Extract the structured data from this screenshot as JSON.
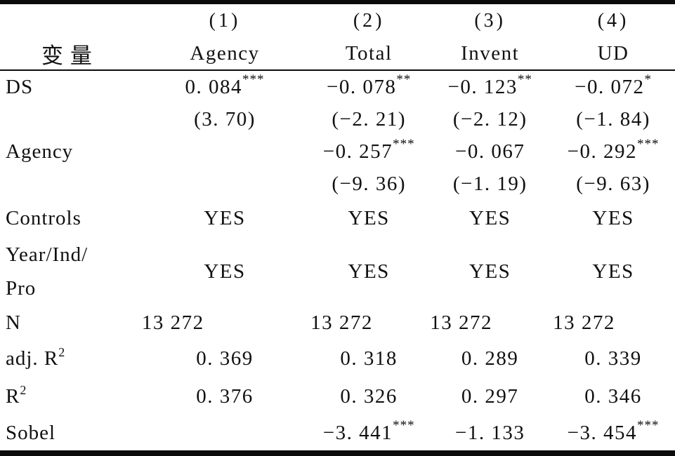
{
  "table": {
    "header": {
      "variable_label": "变量",
      "numbers": [
        "(1)",
        "(2)",
        "(3)",
        "(4)"
      ],
      "names": [
        "Agency",
        "Total",
        "Invent",
        "UD"
      ]
    },
    "rows": {
      "ds": {
        "label": "DS",
        "values": [
          {
            "v": "0. 084",
            "s": "***"
          },
          {
            "v": "−0. 078",
            "s": "**"
          },
          {
            "v": "−0. 123",
            "s": "**"
          },
          {
            "v": "−0. 072",
            "s": "*"
          }
        ],
        "tstats": [
          "(3. 70)",
          "(−2. 21)",
          "(−2. 12)",
          "(−1. 84)"
        ]
      },
      "agency": {
        "label": "Agency",
        "values": [
          {
            "v": "",
            "s": ""
          },
          {
            "v": "−0. 257",
            "s": "***"
          },
          {
            "v": "−0. 067",
            "s": ""
          },
          {
            "v": "−0. 292",
            "s": "***"
          }
        ],
        "tstats": [
          "",
          "(−9. 36)",
          "(−1. 19)",
          "(−9. 63)"
        ]
      },
      "controls": {
        "label": "Controls",
        "values": [
          "YES",
          "YES",
          "YES",
          "YES"
        ]
      },
      "year_ind_pro": {
        "label_line1": "Year/Ind/",
        "label_line2": "Pro",
        "values": [
          "YES",
          "YES",
          "YES",
          "YES"
        ]
      },
      "n": {
        "label": "N",
        "values": [
          "13 272",
          "13 272",
          "13 272",
          "13 272"
        ]
      },
      "adj_r2": {
        "label_prefix": "adj. R",
        "label_sup": "2",
        "values": [
          "0. 369",
          "0. 318",
          "0. 289",
          "0. 339"
        ]
      },
      "r2": {
        "label_prefix": "R",
        "label_sup": "2",
        "values": [
          "0. 376",
          "0. 326",
          "0. 297",
          "0. 346"
        ]
      },
      "sobel": {
        "label": "Sobel",
        "values": [
          {
            "v": "",
            "s": ""
          },
          {
            "v": "−3. 441",
            "s": "***"
          },
          {
            "v": "−1. 133",
            "s": ""
          },
          {
            "v": "−3. 454",
            "s": "***"
          }
        ]
      }
    }
  }
}
